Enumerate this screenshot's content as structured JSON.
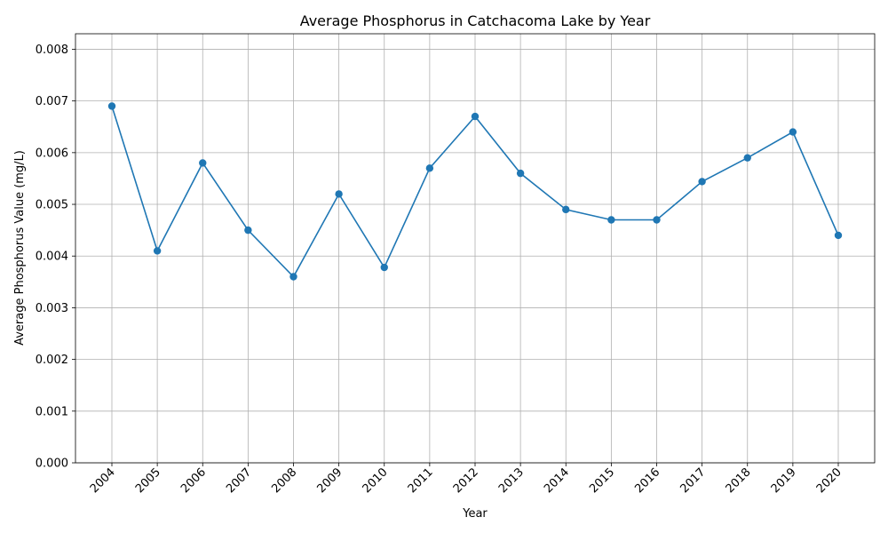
{
  "chart_data": {
    "type": "line",
    "title": "Average Phosphorus in Catchacoma Lake by Year",
    "xlabel": "Year",
    "ylabel": "Average Phosphorus Value (mg/L)",
    "categories": [
      "2004",
      "2005",
      "2006",
      "2007",
      "2008",
      "2009",
      "2010",
      "2011",
      "2012",
      "2013",
      "2014",
      "2015",
      "2016",
      "2017",
      "2018",
      "2019",
      "2020"
    ],
    "series": [
      {
        "values": [
          0.0069,
          0.0041,
          0.0058,
          0.0045,
          0.0036,
          0.0052,
          0.00378,
          0.0057,
          0.0067,
          0.0056,
          0.0049,
          0.0047,
          0.0047,
          0.00544,
          0.0059,
          0.0064,
          0.0044
        ],
        "color": "#1f77b4",
        "marker": "circle"
      }
    ],
    "ylim": [
      0,
      0.0083
    ],
    "yticks": [
      "0.000",
      "0.001",
      "0.002",
      "0.003",
      "0.004",
      "0.005",
      "0.006",
      "0.007",
      "0.008"
    ],
    "ytick_values": [
      0,
      0.001,
      0.002,
      0.003,
      0.004,
      0.005,
      0.006,
      0.007,
      0.008
    ],
    "grid": true,
    "xtick_rotation": "45deg"
  }
}
